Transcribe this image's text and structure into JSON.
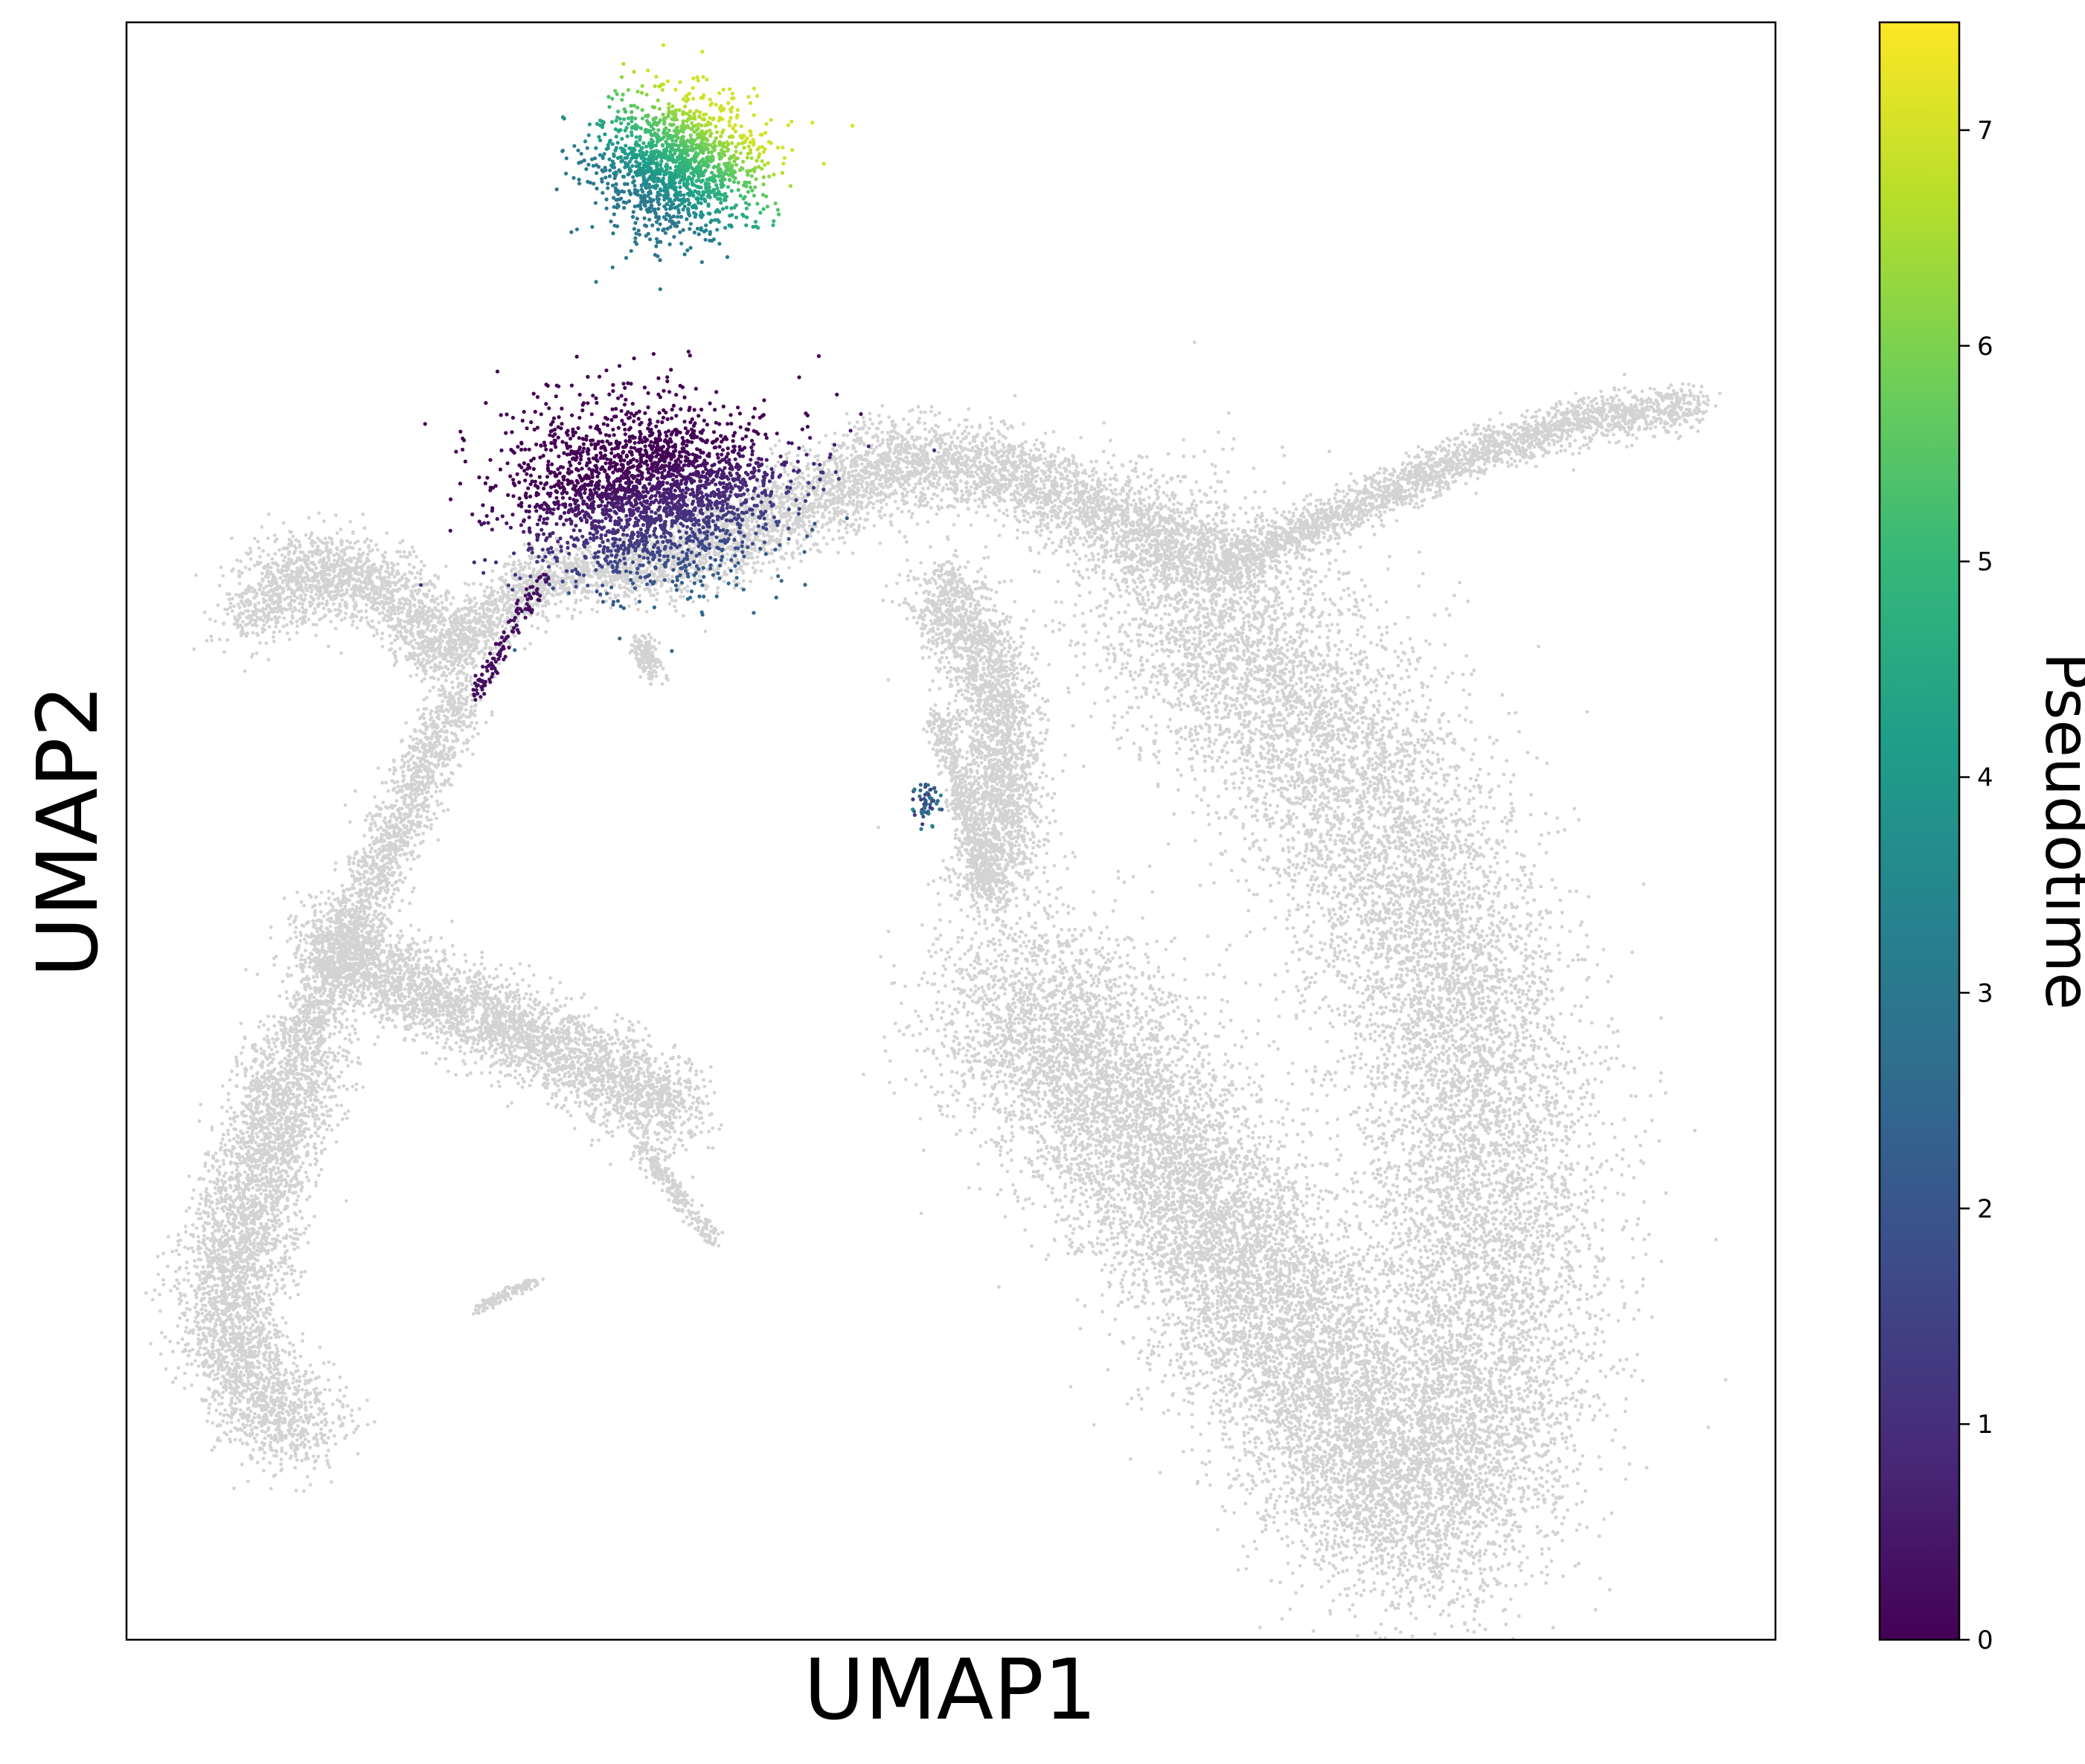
{
  "chart_data": {
    "type": "scatter",
    "xlabel": "UMAP1",
    "ylabel": "UMAP2",
    "show_axis_ticks": false,
    "grid": false,
    "background_color": "#d3d3d3",
    "colorbar": {
      "label": "Pseudotime",
      "colormap": "viridis",
      "range": [
        0,
        7.5
      ],
      "ticks": [
        "0",
        "1",
        "2",
        "3",
        "4",
        "5",
        "6",
        "7"
      ],
      "colors": [
        "#440154",
        "#482878",
        "#3e4989",
        "#31688e",
        "#26828e",
        "#1f9e89",
        "#35b779",
        "#6ece58",
        "#b5de2b",
        "#fde725"
      ]
    },
    "series": [
      {
        "region": "top cluster",
        "pseudotime_range": [
          3.0,
          7.0
        ]
      },
      {
        "region": "upper-left cluster",
        "pseudotime_range": [
          0.0,
          2.5
        ]
      },
      {
        "region": "center small group",
        "pseudotime_range": [
          1.0,
          3.5
        ]
      }
    ]
  }
}
